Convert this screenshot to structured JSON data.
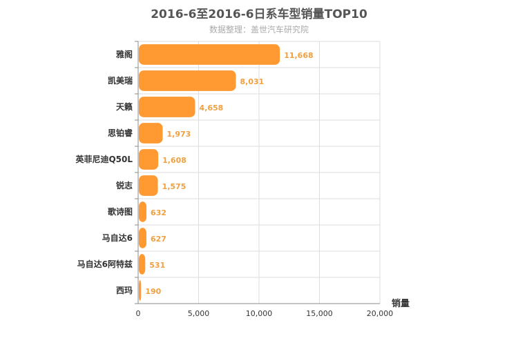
{
  "chart_data": {
    "type": "bar",
    "orientation": "horizontal",
    "title": "2016-6至2016-6日系车型销量TOP10",
    "subtitle": "数据整理：盖世汽车研究院",
    "categories": [
      "雅阁",
      "凯美瑞",
      "天籁",
      "思铂睿",
      "英菲尼迪Q50L",
      "锐志",
      "歌诗图",
      "马自达6",
      "马自达6阿特兹",
      "西玛"
    ],
    "values": [
      11668,
      8031,
      4658,
      1973,
      1608,
      1575,
      632,
      627,
      531,
      190
    ],
    "value_labels": [
      "11,668",
      "8,031",
      "4,658",
      "1,973",
      "1,608",
      "1,575",
      "632",
      "627",
      "531",
      "190"
    ],
    "xlabel": "销量",
    "xlim": [
      0,
      20000
    ],
    "xticks": [
      0,
      5000,
      10000,
      15000,
      20000
    ],
    "xtick_labels": [
      "0",
      "5,000",
      "10,000",
      "15,000",
      "20,000"
    ],
    "grid": true,
    "bar_color": "#ff9a33",
    "value_label_color": "#f0a040"
  }
}
